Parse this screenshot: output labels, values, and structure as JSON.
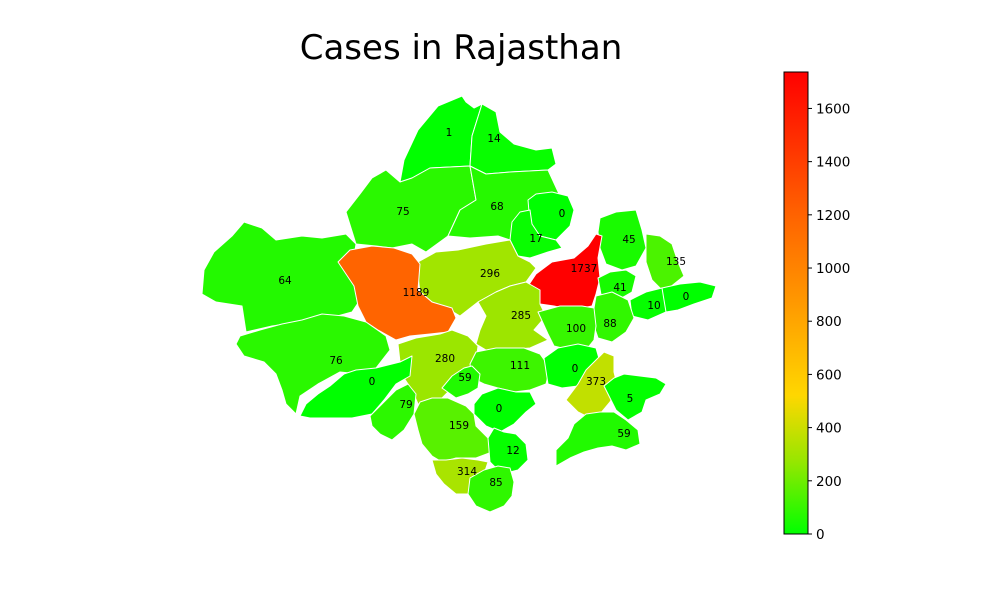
{
  "title": "Cases in Rajasthan",
  "colorbar": {
    "ticks": [
      "0",
      "200",
      "400",
      "600",
      "800",
      "1000",
      "1200",
      "1400",
      "1600"
    ],
    "max": 1737,
    "colors": [
      "#00ff00",
      "#ffd700",
      "#ff0000"
    ]
  },
  "chart_data": {
    "type": "choropleth",
    "title": "Cases in Rajasthan",
    "vmin": 0,
    "vmax": 1737,
    "districts": [
      {
        "value": 1
      },
      {
        "value": 14
      },
      {
        "value": 75
      },
      {
        "value": 68
      },
      {
        "value": 0
      },
      {
        "value": 17
      },
      {
        "value": 45
      },
      {
        "value": 135
      },
      {
        "value": 64
      },
      {
        "value": 296
      },
      {
        "value": 1737
      },
      {
        "value": 1189
      },
      {
        "value": 41
      },
      {
        "value": 10
      },
      {
        "value": 0
      },
      {
        "value": 285
      },
      {
        "value": 88
      },
      {
        "value": 100
      },
      {
        "value": 76
      },
      {
        "value": 280
      },
      {
        "value": 111
      },
      {
        "value": 0
      },
      {
        "value": 0
      },
      {
        "value": 59
      },
      {
        "value": 373
      },
      {
        "value": 79
      },
      {
        "value": 0
      },
      {
        "value": 5
      },
      {
        "value": 159
      },
      {
        "value": 59
      },
      {
        "value": 12
      },
      {
        "value": 314
      },
      {
        "value": 85
      }
    ]
  }
}
